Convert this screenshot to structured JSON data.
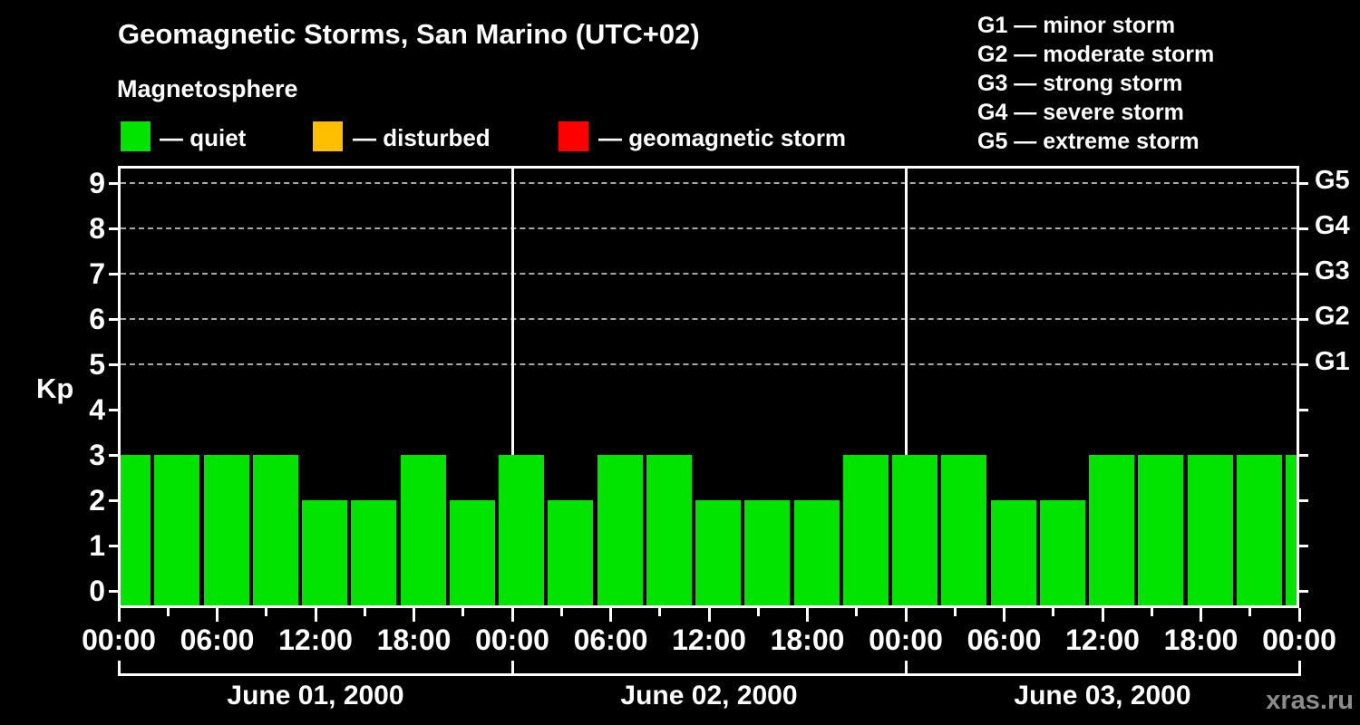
{
  "header": {
    "title": "Geomagnetic Storms, San Marino (UTC+02)",
    "subtitle": "Magnetosphere"
  },
  "legend": {
    "items": [
      {
        "key": "quiet",
        "label": "— quiet",
        "color": "#00E400"
      },
      {
        "key": "disturbed",
        "label": "— disturbed",
        "color": "#FFBE00"
      },
      {
        "key": "storm",
        "label": "— geomagnetic storm",
        "color": "#FF0000"
      }
    ]
  },
  "g_scale_legend": {
    "items": [
      {
        "label": "G1 — minor storm"
      },
      {
        "label": "G2 — moderate storm"
      },
      {
        "label": "G3 — strong storm"
      },
      {
        "label": "G4 — severe storm"
      },
      {
        "label": "G5 — extreme storm"
      }
    ]
  },
  "chart_data": {
    "type": "bar",
    "title": "Geomagnetic Storms, San Marino (UTC+02)",
    "subtitle": "Magnetosphere",
    "ylabel": "Kp",
    "ylim": [
      0,
      9
    ],
    "y_ticks": [
      0,
      1,
      2,
      3,
      4,
      5,
      6,
      7,
      8,
      9
    ],
    "gridlines_at_levels": [
      5,
      6,
      7,
      8,
      9
    ],
    "grid_style": "dashed gray, only at G-storm levels",
    "right_axis_g_labels": [
      {
        "level": 5,
        "label": "G1"
      },
      {
        "level": 6,
        "label": "G2"
      },
      {
        "level": 7,
        "label": "G3"
      },
      {
        "level": 8,
        "label": "G4"
      },
      {
        "level": 9,
        "label": "G5"
      }
    ],
    "x_hours": [
      0,
      3,
      6,
      9,
      12,
      15,
      18,
      21,
      24,
      27,
      30,
      33,
      36,
      39,
      42,
      45,
      48,
      51,
      54,
      57,
      60,
      63,
      66,
      69,
      72
    ],
    "kp_values": [
      3,
      3,
      3,
      3,
      2,
      2,
      3,
      2,
      3,
      2,
      3,
      3,
      2,
      2,
      2,
      3,
      3,
      3,
      2,
      2,
      3,
      3,
      3,
      3,
      3
    ],
    "bar_color": "#00E400",
    "x_major_label_hours": [
      0,
      6,
      12,
      18,
      24,
      30,
      36,
      42,
      48,
      54,
      60,
      66,
      72
    ],
    "x_major_labels": [
      "00:00",
      "06:00",
      "12:00",
      "18:00",
      "00:00",
      "06:00",
      "12:00",
      "18:00",
      "00:00",
      "06:00",
      "12:00",
      "18:00",
      "00:00"
    ],
    "day_boundaries_hours": [
      0,
      24,
      48,
      72
    ],
    "days": [
      {
        "label": "June 01, 2000"
      },
      {
        "label": "June 02, 2000"
      },
      {
        "label": "June 03, 2000"
      }
    ],
    "legend_position": "top",
    "background": "#000000"
  },
  "watermark": "xras.ru"
}
